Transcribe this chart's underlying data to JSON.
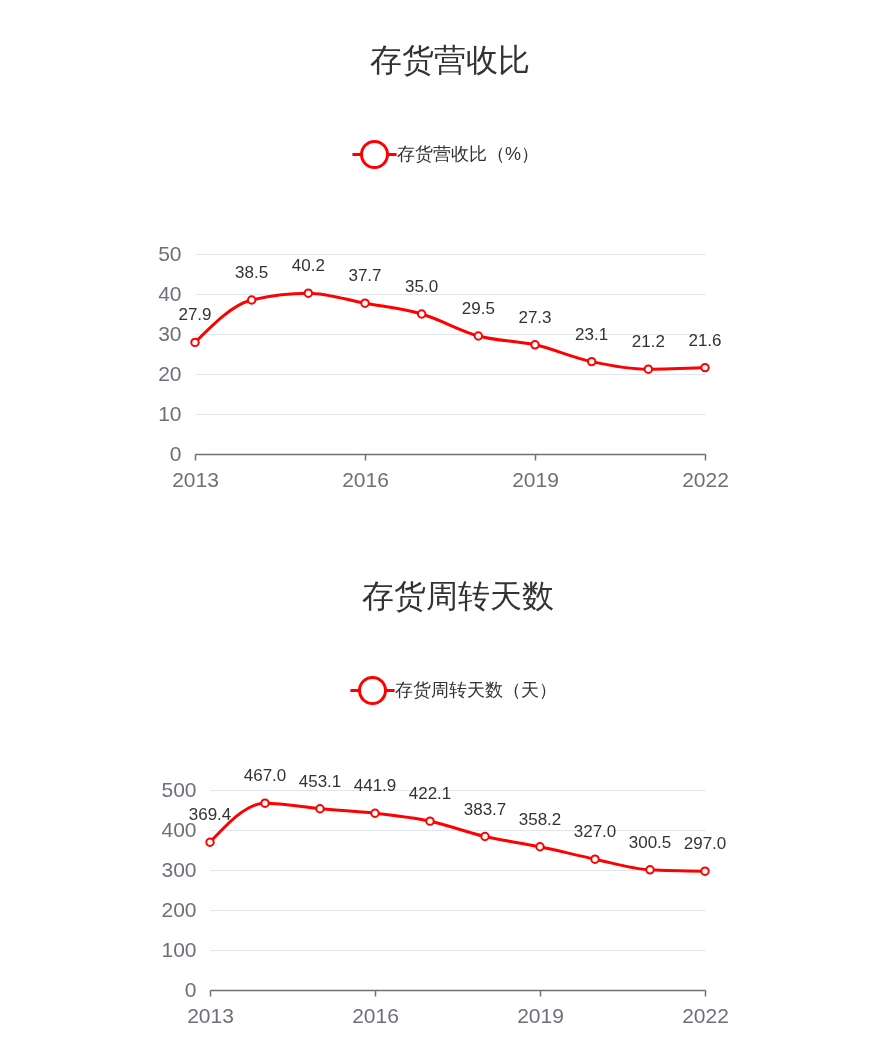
{
  "chart_data": [
    {
      "type": "line",
      "title": "存货营收比",
      "x": [
        2013,
        2014,
        2015,
        2016,
        2017,
        2018,
        2019,
        2020,
        2021,
        2022
      ],
      "series": [
        {
          "name": "存货营收比（%）",
          "color": "#ff0000",
          "values": [
            27.9,
            38.5,
            40.2,
            37.7,
            35.0,
            29.5,
            27.3,
            23.1,
            21.2,
            21.6
          ],
          "value_labels": [
            "27.9",
            "38.5",
            "40.2",
            "37.7",
            "35.0",
            "29.5",
            "27.3",
            "23.1",
            "21.2",
            "21.6"
          ]
        }
      ],
      "xlim": [
        2013,
        2022
      ],
      "xticks": [
        2013,
        2016,
        2019,
        2022
      ],
      "ylim": [
        0,
        50
      ],
      "yticks": [
        0,
        10,
        20,
        30,
        40,
        50
      ],
      "grid": "y",
      "legend": "top",
      "marker": "circle",
      "line_style": "solid"
    },
    {
      "type": "line",
      "title": "存货周转天数",
      "x": [
        2013,
        2014,
        2015,
        2016,
        2017,
        2018,
        2019,
        2020,
        2021,
        2022
      ],
      "series": [
        {
          "name": "存货周转天数（天）",
          "color": "#ff0000",
          "values": [
            369.4,
            467.0,
            453.1,
            441.9,
            422.1,
            383.7,
            358.2,
            327.0,
            300.5,
            297.0
          ],
          "value_labels": [
            "369.4",
            "467.0",
            "453.1",
            "441.9",
            "422.1",
            "383.7",
            "358.2",
            "327.0",
            "300.5",
            "297.0"
          ]
        }
      ],
      "xlim": [
        2013,
        2022
      ],
      "xticks": [
        2013,
        2016,
        2019,
        2022
      ],
      "ylim": [
        0,
        500
      ],
      "yticks": [
        0,
        100,
        200,
        300,
        400,
        500
      ],
      "grid": "y",
      "legend": "top",
      "marker": "circle",
      "line_style": "solid"
    }
  ]
}
